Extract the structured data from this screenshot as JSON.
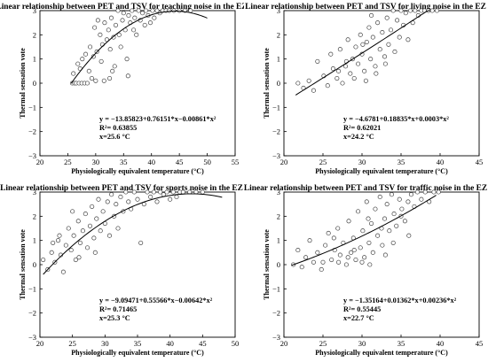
{
  "chart_data": [
    {
      "type": "scatter",
      "title": "Linear relationship between PET and TSV for teaching noise  in the EZ",
      "xlabel": "Physiologically equivalent temperature (°C)",
      "ylabel": "Thermal sensation vote",
      "xlim": [
        20,
        55
      ],
      "ylim": [
        -3,
        3
      ],
      "xticks": [
        "20",
        "25",
        "30",
        "35",
        "40",
        "45",
        "50",
        "55"
      ],
      "yticks": [
        "−3",
        "−2",
        "−1",
        "0",
        "1",
        "2",
        "3"
      ],
      "equation": "y = −13.85823+0.76151*x−0.00861*x²",
      "r2": "R²= 0.63855",
      "xn": "x=25.6 °C",
      "fit": {
        "a": -13.85823,
        "b": 0.76151,
        "c": -0.00861,
        "x_from": 25.6,
        "x_to": 50
      },
      "points": [
        [
          25.8,
          0
        ],
        [
          26.2,
          0
        ],
        [
          26.5,
          0
        ],
        [
          27,
          0
        ],
        [
          27.5,
          0
        ],
        [
          28,
          0
        ],
        [
          28.5,
          0
        ],
        [
          29.3,
          0.2
        ],
        [
          30,
          0.1
        ],
        [
          31.5,
          0.1
        ],
        [
          32.5,
          0.2
        ],
        [
          26,
          0.4
        ],
        [
          26.8,
          0.8
        ],
        [
          27.2,
          0.6
        ],
        [
          28.2,
          1.2
        ],
        [
          27.6,
          1
        ],
        [
          29,
          1.5
        ],
        [
          30.2,
          1.3
        ],
        [
          30.8,
          2
        ],
        [
          31.2,
          1.6
        ],
        [
          31.6,
          2.5
        ],
        [
          32,
          1.8
        ],
        [
          32.3,
          2.2
        ],
        [
          32.8,
          2.7
        ],
        [
          33,
          0.5
        ],
        [
          33.2,
          1.9
        ],
        [
          33.6,
          2.4
        ],
        [
          34,
          3
        ],
        [
          34.2,
          2
        ],
        [
          34.5,
          1.5
        ],
        [
          34.8,
          2.6
        ],
        [
          35,
          2.9
        ],
        [
          35.3,
          2.2
        ],
        [
          35.6,
          1
        ],
        [
          35.9,
          2.8
        ],
        [
          36.2,
          2.5
        ],
        [
          36.5,
          3
        ],
        [
          36.8,
          2.2
        ],
        [
          37,
          2.7
        ],
        [
          37.3,
          2
        ],
        [
          37.7,
          3
        ],
        [
          38,
          2.6
        ],
        [
          38.4,
          2.9
        ],
        [
          38.8,
          2.4
        ],
        [
          39,
          3
        ],
        [
          39.4,
          2.8
        ],
        [
          39.8,
          2.5
        ],
        [
          40.2,
          3
        ],
        [
          40.5,
          2.7
        ],
        [
          41,
          3
        ],
        [
          41.5,
          2.9
        ],
        [
          42,
          3
        ],
        [
          42.6,
          3
        ],
        [
          43.2,
          3
        ],
        [
          44,
          3
        ],
        [
          45,
          3
        ],
        [
          46,
          3
        ],
        [
          47,
          3
        ],
        [
          30.4,
          2.6
        ],
        [
          29.6,
          1.1
        ],
        [
          31,
          0.9
        ],
        [
          32.6,
          1.4
        ],
        [
          33.4,
          0.7
        ],
        [
          35.8,
          0.3
        ],
        [
          29.8,
          2.3
        ],
        [
          28.8,
          0.5
        ]
      ]
    },
    {
      "type": "scatter",
      "title": "Linear relationship between PET and TSV for living noise in the EZ",
      "xlabel": "Physiologically equivalent temperature (°C)",
      "ylabel": "Thermal sensation vote",
      "xlim": [
        20,
        45
      ],
      "ylim": [
        -3,
        3
      ],
      "xticks": [
        "20",
        "25",
        "30",
        "35",
        "40",
        "45"
      ],
      "yticks": [
        "−3",
        "−2",
        "−1",
        "0",
        "1",
        "2",
        "3"
      ],
      "equation": "y = −4.6781+0.18835*x+0.0003*x²",
      "r2": "R²= 0.62021",
      "xn": "x=24.2 °C",
      "fit": {
        "a": -4.6781,
        "b": 0.18835,
        "c": 0.0003,
        "x_from": 21.5,
        "x_to": 38.8
      },
      "points": [
        [
          21.8,
          0
        ],
        [
          22.5,
          -0.2
        ],
        [
          23.2,
          0.1
        ],
        [
          23.8,
          -0.3
        ],
        [
          24.3,
          0.9
        ],
        [
          25.1,
          0.3
        ],
        [
          25.6,
          -0.1
        ],
        [
          26.3,
          0.6
        ],
        [
          26.8,
          0.2
        ],
        [
          27.2,
          1.4
        ],
        [
          27.5,
          0
        ],
        [
          27.9,
          0.7
        ],
        [
          28.2,
          1.8
        ],
        [
          28.5,
          0.4
        ],
        [
          28.8,
          1
        ],
        [
          29.2,
          1.5
        ],
        [
          29.5,
          0.8
        ],
        [
          29.8,
          2
        ],
        [
          30,
          1.2
        ],
        [
          30.3,
          0.5
        ],
        [
          30.6,
          1.7
        ],
        [
          30.9,
          2.3
        ],
        [
          31.1,
          1
        ],
        [
          31.4,
          1.9
        ],
        [
          31.7,
          0.7
        ],
        [
          32,
          2.5
        ],
        [
          32.3,
          1.4
        ],
        [
          32.6,
          2.1
        ],
        [
          32.9,
          1.1
        ],
        [
          33.2,
          2.7
        ],
        [
          33.4,
          1.6
        ],
        [
          33.7,
          2.2
        ],
        [
          34,
          3
        ],
        [
          34.2,
          1.3
        ],
        [
          34.5,
          2.6
        ],
        [
          34.8,
          1.9
        ],
        [
          35,
          3
        ],
        [
          35.3,
          2.4
        ],
        [
          35.6,
          2.9
        ],
        [
          35.9,
          1.8
        ],
        [
          36.2,
          3
        ],
        [
          36.5,
          2.5
        ],
        [
          36.8,
          3
        ],
        [
          37.2,
          2.8
        ],
        [
          37.6,
          3
        ],
        [
          38,
          3
        ],
        [
          38.5,
          3
        ],
        [
          39,
          3
        ],
        [
          39.6,
          3
        ],
        [
          28,
          0.9
        ],
        [
          29,
          0.2
        ],
        [
          30.5,
          0.1
        ],
        [
          31.8,
          0.4
        ],
        [
          26,
          1.2
        ],
        [
          27,
          0.5
        ],
        [
          33,
          0.8
        ],
        [
          30.1,
          1.6
        ],
        [
          31.2,
          2.8
        ]
      ]
    },
    {
      "type": "scatter",
      "title": "Linear relationship between PET and TSV for sports noise in the EZ",
      "xlabel": "Physiologically equivalent temperature (°C)",
      "ylabel": "Thermal sensation vote",
      "xlim": [
        20,
        50
      ],
      "ylim": [
        -3,
        3
      ],
      "xticks": [
        "20",
        "25",
        "30",
        "35",
        "40",
        "45",
        "50"
      ],
      "yticks": [
        "−3",
        "−2",
        "−1",
        "0",
        "1",
        "2",
        "3"
      ],
      "equation": "y = −9.09471+0.55566*x−0.00642*x²",
      "r2": "R²= 0.71465",
      "xn": "x=25.3 °C",
      "fit": {
        "a": -9.09471,
        "b": 0.55566,
        "c": -0.00642,
        "x_from": 20.5,
        "x_to": 48
      },
      "points": [
        [
          20.5,
          0.2
        ],
        [
          21.2,
          -0.2
        ],
        [
          21.8,
          0.5
        ],
        [
          22.3,
          0.1
        ],
        [
          22.8,
          1
        ],
        [
          23.2,
          0.4
        ],
        [
          23.6,
          -0.3
        ],
        [
          24,
          0.8
        ],
        [
          24.4,
          1.5
        ],
        [
          24.8,
          0.6
        ],
        [
          25.2,
          1.2
        ],
        [
          25.5,
          0.2
        ],
        [
          25.9,
          1.8
        ],
        [
          26.2,
          0.9
        ],
        [
          26.6,
          1.4
        ],
        [
          27,
          2.1
        ],
        [
          27.3,
          0.7
        ],
        [
          27.7,
          1.6
        ],
        [
          28,
          2.4
        ],
        [
          28.3,
          1.1
        ],
        [
          28.7,
          1.9
        ],
        [
          29,
          2.7
        ],
        [
          29.3,
          1.4
        ],
        [
          29.7,
          2.2
        ],
        [
          30,
          1.7
        ],
        [
          30.4,
          2.6
        ],
        [
          30.7,
          1.2
        ],
        [
          31,
          2.9
        ],
        [
          31.4,
          2
        ],
        [
          31.7,
          2.5
        ],
        [
          32,
          1.5
        ],
        [
          32.4,
          2.8
        ],
        [
          32.8,
          2.2
        ],
        [
          33.2,
          3
        ],
        [
          33.6,
          2.6
        ],
        [
          34,
          2.3
        ],
        [
          34.5,
          3
        ],
        [
          35,
          2.7
        ],
        [
          35.5,
          0.9
        ],
        [
          36,
          2.5
        ],
        [
          36.5,
          3
        ],
        [
          37,
          2.8
        ],
        [
          37.5,
          3
        ],
        [
          38,
          2.6
        ],
        [
          38.5,
          3
        ],
        [
          39,
          2.9
        ],
        [
          39.5,
          3
        ],
        [
          40,
          2.7
        ],
        [
          40.5,
          3
        ],
        [
          41,
          2.8
        ],
        [
          41.5,
          3
        ],
        [
          42,
          3
        ],
        [
          43,
          3
        ],
        [
          44,
          3
        ],
        [
          45,
          3
        ],
        [
          23,
          1.2
        ],
        [
          26,
          0.3
        ],
        [
          28.5,
          0.5
        ],
        [
          22,
          0.9
        ],
        [
          25,
          2.2
        ]
      ]
    },
    {
      "type": "scatter",
      "title": "Linear relationship between PET and TSV for traffic noise in the EZ",
      "xlabel": "Physiologically equivalent temperature (°C)",
      "ylabel": "Thermal sensation vote",
      "xlim": [
        20,
        45
      ],
      "ylim": [
        -3,
        3
      ],
      "xticks": [
        "20",
        "25",
        "30",
        "35",
        "40",
        "45"
      ],
      "yticks": [
        "−3",
        "−2",
        "−1",
        "0",
        "1",
        "2",
        "3"
      ],
      "equation": "y = −1.35164+0.01362*x+0.00236*x²",
      "r2": "R²= 0.55445",
      "xn": "x=22.7 °C",
      "fit": {
        "a": -1.35164,
        "b": 0.01362,
        "c": 0.00236,
        "x_from": 21,
        "x_to": 39.5
      },
      "points": [
        [
          21.2,
          0
        ],
        [
          21.8,
          0.6
        ],
        [
          22.3,
          -0.1
        ],
        [
          22.8,
          0.3
        ],
        [
          23.3,
          1
        ],
        [
          23.8,
          0.1
        ],
        [
          24.3,
          0.5
        ],
        [
          24.8,
          -0.2
        ],
        [
          25.3,
          0.8
        ],
        [
          25.7,
          1.3
        ],
        [
          26.1,
          0.2
        ],
        [
          26.5,
          0.6
        ],
        [
          26.9,
          1.5
        ],
        [
          27.2,
          0.4
        ],
        [
          27.6,
          0.9
        ],
        [
          28,
          0
        ],
        [
          28.3,
          1.8
        ],
        [
          28.6,
          0.5
        ],
        [
          28.9,
          1.1
        ],
        [
          29.2,
          0.2
        ],
        [
          29.5,
          2.2
        ],
        [
          29.8,
          0.7
        ],
        [
          30.1,
          1.4
        ],
        [
          30.3,
          0.3
        ],
        [
          30.6,
          2.6
        ],
        [
          30.9,
          0.9
        ],
        [
          31.2,
          1.7
        ],
        [
          31.4,
          0.5
        ],
        [
          31.7,
          2.3
        ],
        [
          32,
          1.2
        ],
        [
          32.3,
          2.8
        ],
        [
          32.6,
          0.8
        ],
        [
          32.9,
          1.9
        ],
        [
          33.2,
          2.5
        ],
        [
          33.5,
          1.4
        ],
        [
          33.8,
          2.9
        ],
        [
          34.1,
          2.1
        ],
        [
          34.4,
          1.6
        ],
        [
          34.8,
          2.7
        ],
        [
          35.1,
          2.3
        ],
        [
          35.5,
          1.8
        ],
        [
          35.9,
          2.6
        ],
        [
          36.3,
          2.9
        ],
        [
          36.7,
          2.4
        ],
        [
          37.1,
          3
        ],
        [
          37.6,
          2.7
        ],
        [
          38.1,
          3
        ],
        [
          38.6,
          2.6
        ],
        [
          39.2,
          3
        ],
        [
          39.8,
          3
        ],
        [
          30,
          0.1
        ],
        [
          31,
          0
        ],
        [
          29,
          0.6
        ],
        [
          27,
          0.1
        ],
        [
          33,
          0.4
        ],
        [
          34,
          0.9
        ],
        [
          28.2,
          0.3
        ],
        [
          30.8,
          1.9
        ],
        [
          32.5,
          1.5
        ],
        [
          35,
          2
        ],
        [
          36,
          1.2
        ],
        [
          25,
          0.1
        ],
        [
          26.4,
          1.1
        ]
      ]
    }
  ]
}
